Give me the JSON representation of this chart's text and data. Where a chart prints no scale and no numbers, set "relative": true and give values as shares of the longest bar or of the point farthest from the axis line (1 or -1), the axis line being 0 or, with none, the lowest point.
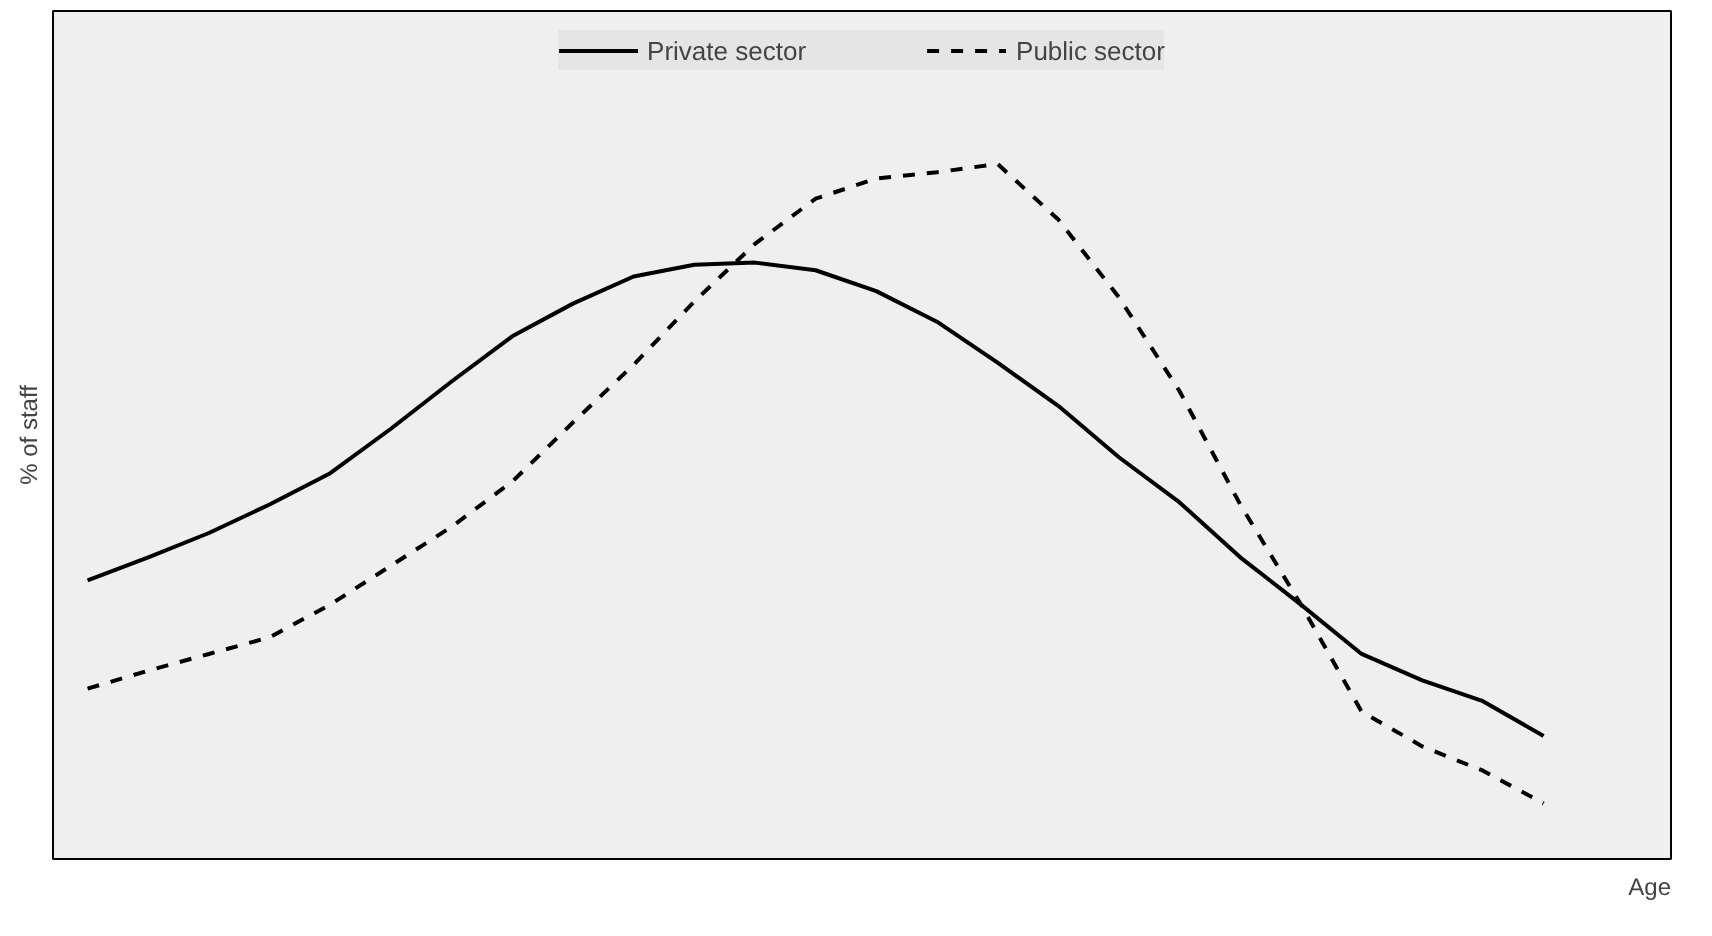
{
  "chart_data": {
    "type": "line",
    "relative": true,
    "xlabel": "Age",
    "ylabel": "% of staff",
    "legend": "top",
    "grid": false,
    "marker": "none",
    "categories": [
      null,
      null,
      null,
      null,
      null,
      null,
      null,
      null,
      null,
      null,
      null,
      null,
      null,
      null,
      null,
      null,
      null,
      null,
      null,
      null,
      null,
      null,
      null,
      null,
      null
    ],
    "series": [
      {
        "name": "Private sector",
        "color": "#000000",
        "line_style": "solid",
        "values": [
          0.401,
          0.434,
          0.469,
          0.51,
          0.555,
          0.619,
          0.687,
          0.752,
          0.799,
          0.838,
          0.855,
          0.858,
          0.847,
          0.817,
          0.773,
          0.714,
          0.652,
          0.578,
          0.513,
          0.434,
          0.366,
          0.295,
          0.257,
          0.227,
          0.177
        ]
      },
      {
        "name": "Public sector",
        "color": "#000000",
        "line_style": "dashed",
        "values": [
          0.245,
          0.271,
          0.295,
          0.319,
          0.366,
          0.422,
          0.478,
          0.543,
          0.628,
          0.711,
          0.802,
          0.885,
          0.95,
          0.979,
          0.988,
          1.0,
          0.92,
          0.808,
          0.673,
          0.51,
          0.366,
          0.212,
          0.162,
          0.127,
          0.08
        ]
      }
    ]
  }
}
